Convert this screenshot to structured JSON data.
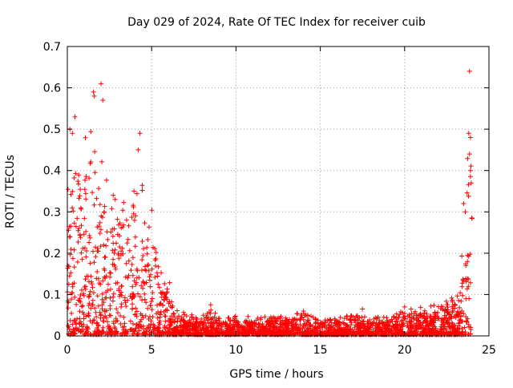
{
  "chart_data": {
    "type": "scatter",
    "title": "Day 029 of 2024, Rate Of TEC Index for receiver cuib",
    "xlabel": "GPS time / hours",
    "ylabel": "ROTI / TECUs",
    "xlim": [
      0,
      25
    ],
    "ylim": [
      0,
      0.7
    ],
    "x_ticks": [
      "0",
      "5",
      "10",
      "15",
      "20",
      "25"
    ],
    "y_ticks": [
      "0",
      "0.1",
      "0.2",
      "0.3",
      "0.4",
      "0.5",
      "0.6",
      "0.7"
    ],
    "x_tick_values": [
      0,
      5,
      10,
      15,
      20,
      25
    ],
    "y_tick_values": [
      0,
      0.1,
      0.2,
      0.3,
      0.4,
      0.5,
      0.6,
      0.7
    ],
    "grid": true,
    "marker": "plus",
    "color": "#ff0000",
    "envelope": [
      {
        "x": 0.0,
        "y": 0.44
      },
      {
        "x": 0.2,
        "y": 0.5
      },
      {
        "x": 0.4,
        "y": 0.53
      },
      {
        "x": 0.6,
        "y": 0.45
      },
      {
        "x": 0.8,
        "y": 0.42
      },
      {
        "x": 1.0,
        "y": 0.5
      },
      {
        "x": 1.2,
        "y": 0.45
      },
      {
        "x": 1.4,
        "y": 0.59
      },
      {
        "x": 1.6,
        "y": 0.52
      },
      {
        "x": 1.8,
        "y": 0.4
      },
      {
        "x": 2.0,
        "y": 0.61
      },
      {
        "x": 2.2,
        "y": 0.45
      },
      {
        "x": 2.5,
        "y": 0.37
      },
      {
        "x": 2.8,
        "y": 0.38
      },
      {
        "x": 3.0,
        "y": 0.4
      },
      {
        "x": 3.3,
        "y": 0.42
      },
      {
        "x": 3.6,
        "y": 0.4
      },
      {
        "x": 4.0,
        "y": 0.37
      },
      {
        "x": 4.3,
        "y": 0.49
      },
      {
        "x": 4.6,
        "y": 0.38
      },
      {
        "x": 5.0,
        "y": 0.33
      },
      {
        "x": 5.3,
        "y": 0.25
      },
      {
        "x": 5.6,
        "y": 0.2
      },
      {
        "x": 6.0,
        "y": 0.16
      },
      {
        "x": 6.3,
        "y": 0.07
      },
      {
        "x": 6.6,
        "y": 0.055
      },
      {
        "x": 7.0,
        "y": 0.06
      },
      {
        "x": 7.5,
        "y": 0.05
      },
      {
        "x": 8.0,
        "y": 0.045
      },
      {
        "x": 8.5,
        "y": 0.07
      },
      {
        "x": 9.0,
        "y": 0.045
      },
      {
        "x": 10.0,
        "y": 0.05
      },
      {
        "x": 11.0,
        "y": 0.045
      },
      {
        "x": 12.0,
        "y": 0.05
      },
      {
        "x": 13.0,
        "y": 0.045
      },
      {
        "x": 14.0,
        "y": 0.06
      },
      {
        "x": 15.0,
        "y": 0.045
      },
      {
        "x": 16.0,
        "y": 0.05
      },
      {
        "x": 17.0,
        "y": 0.06
      },
      {
        "x": 18.0,
        "y": 0.045
      },
      {
        "x": 19.0,
        "y": 0.05
      },
      {
        "x": 20.0,
        "y": 0.065
      },
      {
        "x": 21.0,
        "y": 0.07
      },
      {
        "x": 22.0,
        "y": 0.08
      },
      {
        "x": 22.8,
        "y": 0.1
      },
      {
        "x": 23.3,
        "y": 0.15
      },
      {
        "x": 23.6,
        "y": 0.33
      },
      {
        "x": 23.9,
        "y": 0.64
      },
      {
        "x": 24.0,
        "y": 0.4
      }
    ],
    "outliers": [
      {
        "x": 2.0,
        "y": 0.61
      },
      {
        "x": 2.1,
        "y": 0.57
      },
      {
        "x": 1.55,
        "y": 0.59
      },
      {
        "x": 1.6,
        "y": 0.58
      },
      {
        "x": 0.45,
        "y": 0.53
      },
      {
        "x": 0.15,
        "y": 0.5
      },
      {
        "x": 0.3,
        "y": 0.49
      },
      {
        "x": 4.3,
        "y": 0.49
      },
      {
        "x": 4.2,
        "y": 0.45
      },
      {
        "x": 23.85,
        "y": 0.64
      },
      {
        "x": 23.8,
        "y": 0.49
      },
      {
        "x": 23.9,
        "y": 0.48
      },
      {
        "x": 23.85,
        "y": 0.44
      },
      {
        "x": 23.9,
        "y": 0.4
      },
      {
        "x": 23.95,
        "y": 0.37
      },
      {
        "x": 23.5,
        "y": 0.32
      },
      {
        "x": 23.6,
        "y": 0.3
      },
      {
        "x": 8.5,
        "y": 0.075
      },
      {
        "x": 14.0,
        "y": 0.06
      },
      {
        "x": 17.5,
        "y": 0.065
      },
      {
        "x": 20.0,
        "y": 0.07
      }
    ]
  }
}
